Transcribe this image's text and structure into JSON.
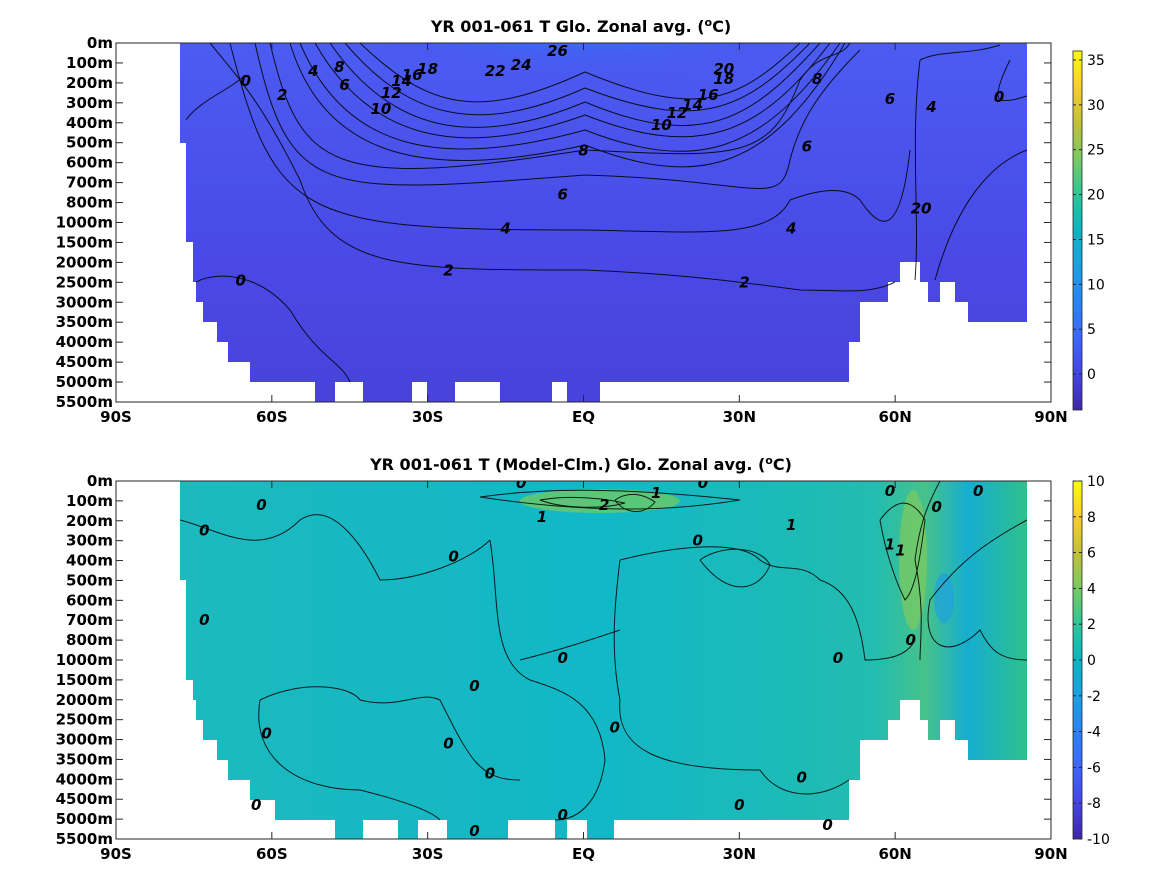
{
  "chart_data": [
    {
      "type": "heatmap",
      "title": "YR 001-061 T Glo. Zonal avg. (",
      "title_sup": "o",
      "title_end": "C)",
      "x_ticks": [
        "90S",
        "60S",
        "30S",
        "EQ",
        "30N",
        "60N",
        "90N"
      ],
      "x_range": [
        -90,
        90
      ],
      "y_ticks": [
        "0m",
        "100m",
        "200m",
        "300m",
        "400m",
        "500m",
        "600m",
        "700m",
        "800m",
        "1000m",
        "1500m",
        "2000m",
        "2500m",
        "3000m",
        "3500m",
        "4000m",
        "4500m",
        "5000m",
        "5500m"
      ],
      "colorbar_ticks": [
        "35",
        "30",
        "25",
        "20",
        "15",
        "10",
        "5",
        "0"
      ],
      "colorbar_range": [
        -4,
        36
      ],
      "colormap": "parula",
      "contour_labels": [
        {
          "text": "26",
          "lat": -5,
          "depth_index": 0.4
        },
        {
          "text": "24",
          "lat": -12,
          "depth_index": 1.1
        },
        {
          "text": "22",
          "lat": -17,
          "depth_index": 1.4
        },
        {
          "text": "20",
          "lat": 27,
          "depth_index": 1.3
        },
        {
          "text": "18",
          "lat": -30,
          "depth_index": 1.3
        },
        {
          "text": "18",
          "lat": 27,
          "depth_index": 1.8
        },
        {
          "text": "16",
          "lat": -33,
          "depth_index": 1.6
        },
        {
          "text": "16",
          "lat": 24,
          "depth_index": 2.6
        },
        {
          "text": "14",
          "lat": -35,
          "depth_index": 1.9
        },
        {
          "text": "14",
          "lat": 21,
          "depth_index": 3.1
        },
        {
          "text": "12",
          "lat": -37,
          "depth_index": 2.5
        },
        {
          "text": "12",
          "lat": 18,
          "depth_index": 3.5
        },
        {
          "text": "10",
          "lat": -39,
          "depth_index": 3.3
        },
        {
          "text": "10",
          "lat": 15,
          "depth_index": 4.1
        },
        {
          "text": "8",
          "lat": -47,
          "depth_index": 1.2
        },
        {
          "text": "8",
          "lat": 0,
          "depth_index": 5.4
        },
        {
          "text": "8",
          "lat": 45,
          "depth_index": 1.8
        },
        {
          "text": "6",
          "lat": -46,
          "depth_index": 2.1
        },
        {
          "text": "6",
          "lat": -4,
          "depth_index": 7.6
        },
        {
          "text": "6",
          "lat": 43,
          "depth_index": 5.2
        },
        {
          "text": "6",
          "lat": 59,
          "depth_index": 2.8
        },
        {
          "text": "4",
          "lat": -52,
          "depth_index": 1.4
        },
        {
          "text": "4",
          "lat": -15,
          "depth_index": 9.3
        },
        {
          "text": "4",
          "lat": 40,
          "depth_index": 9.3
        },
        {
          "text": "4",
          "lat": 67,
          "depth_index": 3.2
        },
        {
          "text": "2",
          "lat": -58,
          "depth_index": 2.6
        },
        {
          "text": "2",
          "lat": -26,
          "depth_index": 11.4
        },
        {
          "text": "2",
          "lat": 31,
          "depth_index": 12.0
        },
        {
          "text": "2",
          "lat": 64,
          "depth_index": 8.3
        },
        {
          "text": "0",
          "lat": -65,
          "depth_index": 1.9
        },
        {
          "text": "0",
          "lat": -66,
          "depth_index": 11.9
        },
        {
          "text": "0",
          "lat": 66,
          "depth_index": 8.3
        },
        {
          "text": "0",
          "lat": 80,
          "depth_index": 2.7
        }
      ]
    },
    {
      "type": "heatmap",
      "title": "YR 001-061 T (Model-Clm.) Glo. Zonal avg. (",
      "title_sup": "o",
      "title_end": "C)",
      "x_ticks": [
        "90S",
        "60S",
        "30S",
        "EQ",
        "30N",
        "60N",
        "90N"
      ],
      "x_range": [
        -90,
        90
      ],
      "y_ticks": [
        "0m",
        "100m",
        "200m",
        "300m",
        "400m",
        "500m",
        "600m",
        "700m",
        "800m",
        "1000m",
        "1500m",
        "2000m",
        "2500m",
        "3000m",
        "3500m",
        "4000m",
        "4500m",
        "5000m",
        "5500m"
      ],
      "colorbar_ticks": [
        "10",
        "8",
        "6",
        "4",
        "2",
        "0",
        "-2",
        "-4",
        "-6",
        "-8",
        "-10"
      ],
      "colorbar_range": [
        -10,
        10
      ],
      "colormap": "parula",
      "contour_labels": [
        {
          "text": "0",
          "lat": -12,
          "depth_index": 0.1
        },
        {
          "text": "0",
          "lat": 23,
          "depth_index": 0.1
        },
        {
          "text": "0",
          "lat": 59,
          "depth_index": 0.5
        },
        {
          "text": "0",
          "lat": 76,
          "depth_index": 0.5
        },
        {
          "text": "0",
          "lat": -62,
          "depth_index": 1.2
        },
        {
          "text": "0",
          "lat": 68,
          "depth_index": 1.3
        },
        {
          "text": "0",
          "lat": -73,
          "depth_index": 2.5
        },
        {
          "text": "0",
          "lat": 22,
          "depth_index": 3.0
        },
        {
          "text": "0",
          "lat": -25,
          "depth_index": 3.8
        },
        {
          "text": "0",
          "lat": -73,
          "depth_index": 7.0
        },
        {
          "text": "0",
          "lat": -4,
          "depth_index": 8.9
        },
        {
          "text": "0",
          "lat": 49,
          "depth_index": 8.9
        },
        {
          "text": "0",
          "lat": 63,
          "depth_index": 8.0
        },
        {
          "text": "0",
          "lat": -21,
          "depth_index": 10.3
        },
        {
          "text": "0",
          "lat": -61,
          "depth_index": 12.7
        },
        {
          "text": "0",
          "lat": -26,
          "depth_index": 13.2
        },
        {
          "text": "0",
          "lat": 6,
          "depth_index": 12.4
        },
        {
          "text": "0",
          "lat": -18,
          "depth_index": 14.7
        },
        {
          "text": "0",
          "lat": 42,
          "depth_index": 14.9
        },
        {
          "text": "0",
          "lat": -63,
          "depth_index": 16.3
        },
        {
          "text": "0",
          "lat": 30,
          "depth_index": 16.3
        },
        {
          "text": "0",
          "lat": -4,
          "depth_index": 16.8
        },
        {
          "text": "0",
          "lat": -21,
          "depth_index": 17.6
        },
        {
          "text": "0",
          "lat": 47,
          "depth_index": 17.3
        },
        {
          "text": "1",
          "lat": 14,
          "depth_index": 0.6
        },
        {
          "text": "1",
          "lat": -8,
          "depth_index": 1.8
        },
        {
          "text": "1",
          "lat": 40,
          "depth_index": 2.2
        },
        {
          "text": "1",
          "lat": 59,
          "depth_index": 3.2
        },
        {
          "text": "1",
          "lat": 61,
          "depth_index": 3.5
        },
        {
          "text": "2",
          "lat": 4,
          "depth_index": 1.2
        }
      ]
    }
  ]
}
